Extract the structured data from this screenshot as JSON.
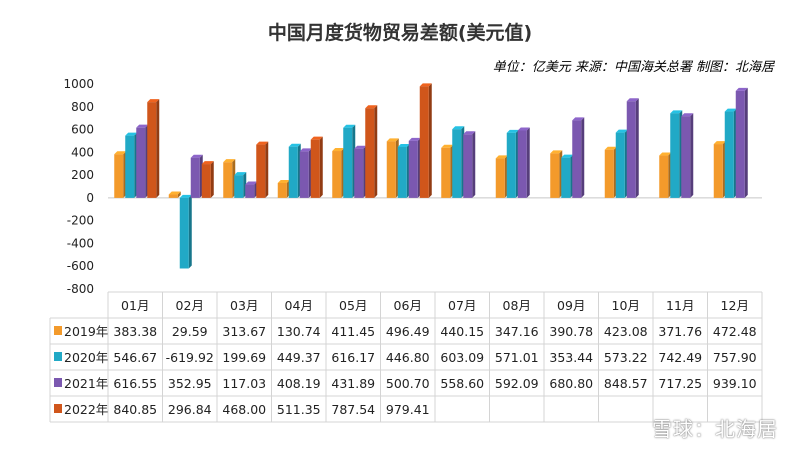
{
  "chart_data": {
    "type": "bar",
    "title": "中国月度货物贸易差额(美元值)",
    "subtitle": "单位：亿美元 来源：中国海关总署 制图：北海居",
    "categories": [
      "01月",
      "02月",
      "03月",
      "04月",
      "05月",
      "06月",
      "07月",
      "08月",
      "09月",
      "10月",
      "11月",
      "12月"
    ],
    "ylim": [
      -800,
      1000
    ],
    "yticks": [
      "1000",
      "800",
      "600",
      "400",
      "200",
      "0",
      "-200",
      "-400",
      "-600",
      "-800"
    ],
    "grid": false,
    "legend": "table-left",
    "series": [
      {
        "name": "2019年",
        "color": "#F39A2B",
        "values": [
          383.38,
          29.59,
          313.67,
          130.74,
          411.45,
          496.49,
          440.15,
          347.16,
          390.78,
          423.08,
          371.76,
          472.48
        ],
        "labels": [
          "383.38",
          "29.59",
          "313.67",
          "130.74",
          "411.45",
          "496.49",
          "440.15",
          "347.16",
          "390.78",
          "423.08",
          "371.76",
          "472.48"
        ]
      },
      {
        "name": "2020年",
        "color": "#21A9C6",
        "values": [
          546.67,
          -619.92,
          199.69,
          449.37,
          616.17,
          446.8,
          603.09,
          571.01,
          353.44,
          573.22,
          742.49,
          757.9
        ],
        "labels": [
          "546.67",
          "-619.92",
          "199.69",
          "449.37",
          "616.17",
          "446.80",
          "603.09",
          "571.01",
          "353.44",
          "573.22",
          "742.49",
          "757.90"
        ]
      },
      {
        "name": "2021年",
        "color": "#7B58B0",
        "values": [
          616.55,
          352.95,
          117.03,
          408.19,
          431.89,
          500.7,
          558.6,
          592.09,
          680.8,
          848.57,
          717.25,
          939.1
        ],
        "labels": [
          "616.55",
          "352.95",
          "117.03",
          "408.19",
          "431.89",
          "500.70",
          "558.60",
          "592.09",
          "680.80",
          "848.57",
          "717.25",
          "939.10"
        ]
      },
      {
        "name": "2022年",
        "color": "#D0561B",
        "values": [
          840.85,
          296.84,
          468.0,
          511.35,
          787.54,
          979.41,
          null,
          null,
          null,
          null,
          null,
          null
        ],
        "labels": [
          "840.85",
          "296.84",
          "468.00",
          "511.35",
          "787.54",
          "979.41",
          "",
          "",
          "",
          "",
          "",
          ""
        ]
      }
    ]
  },
  "watermark": "雪球：北海居"
}
